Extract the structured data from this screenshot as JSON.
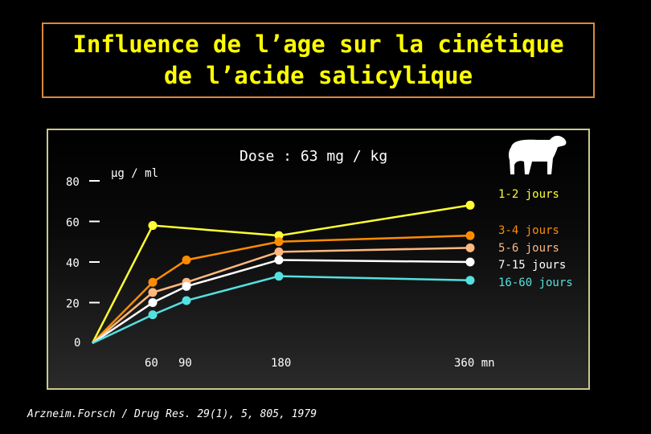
{
  "title": {
    "line1": "Influence de l’age sur la cinétique",
    "line2": "de l’acide salicylique"
  },
  "dose_label": "Dose : 63 mg / kg",
  "icon": "calf-icon",
  "footer": "Arzneim.Forsch / Drug  Res. 29(1), 5, 805,  1979",
  "chart_data": {
    "type": "line",
    "ylabel": "µg / ml",
    "x_unit": "mn",
    "ylim": [
      0,
      80
    ],
    "yticks": [
      "0",
      "20",
      "40",
      "60",
      "80"
    ],
    "xticks": [
      "60",
      "90",
      "180",
      "360 mn"
    ],
    "x": [
      0,
      60,
      90,
      180,
      360
    ],
    "series": [
      {
        "name": "1-2 jours",
        "color": "#ffff33",
        "values": [
          0,
          58,
          null,
          53,
          68
        ]
      },
      {
        "name": "3-4 jours",
        "color": "#ff8c00",
        "values": [
          0,
          30,
          41,
          50,
          53
        ]
      },
      {
        "name": "5-6 jours",
        "color": "#ffb880",
        "values": [
          0,
          25,
          30,
          45,
          47
        ]
      },
      {
        "name": "7-15 jours",
        "color": "#ffffff",
        "values": [
          0,
          20,
          28,
          41,
          40
        ]
      },
      {
        "name": "16-60 jours",
        "color": "#55e0e0",
        "values": [
          0,
          14,
          21,
          33,
          31
        ]
      }
    ]
  }
}
